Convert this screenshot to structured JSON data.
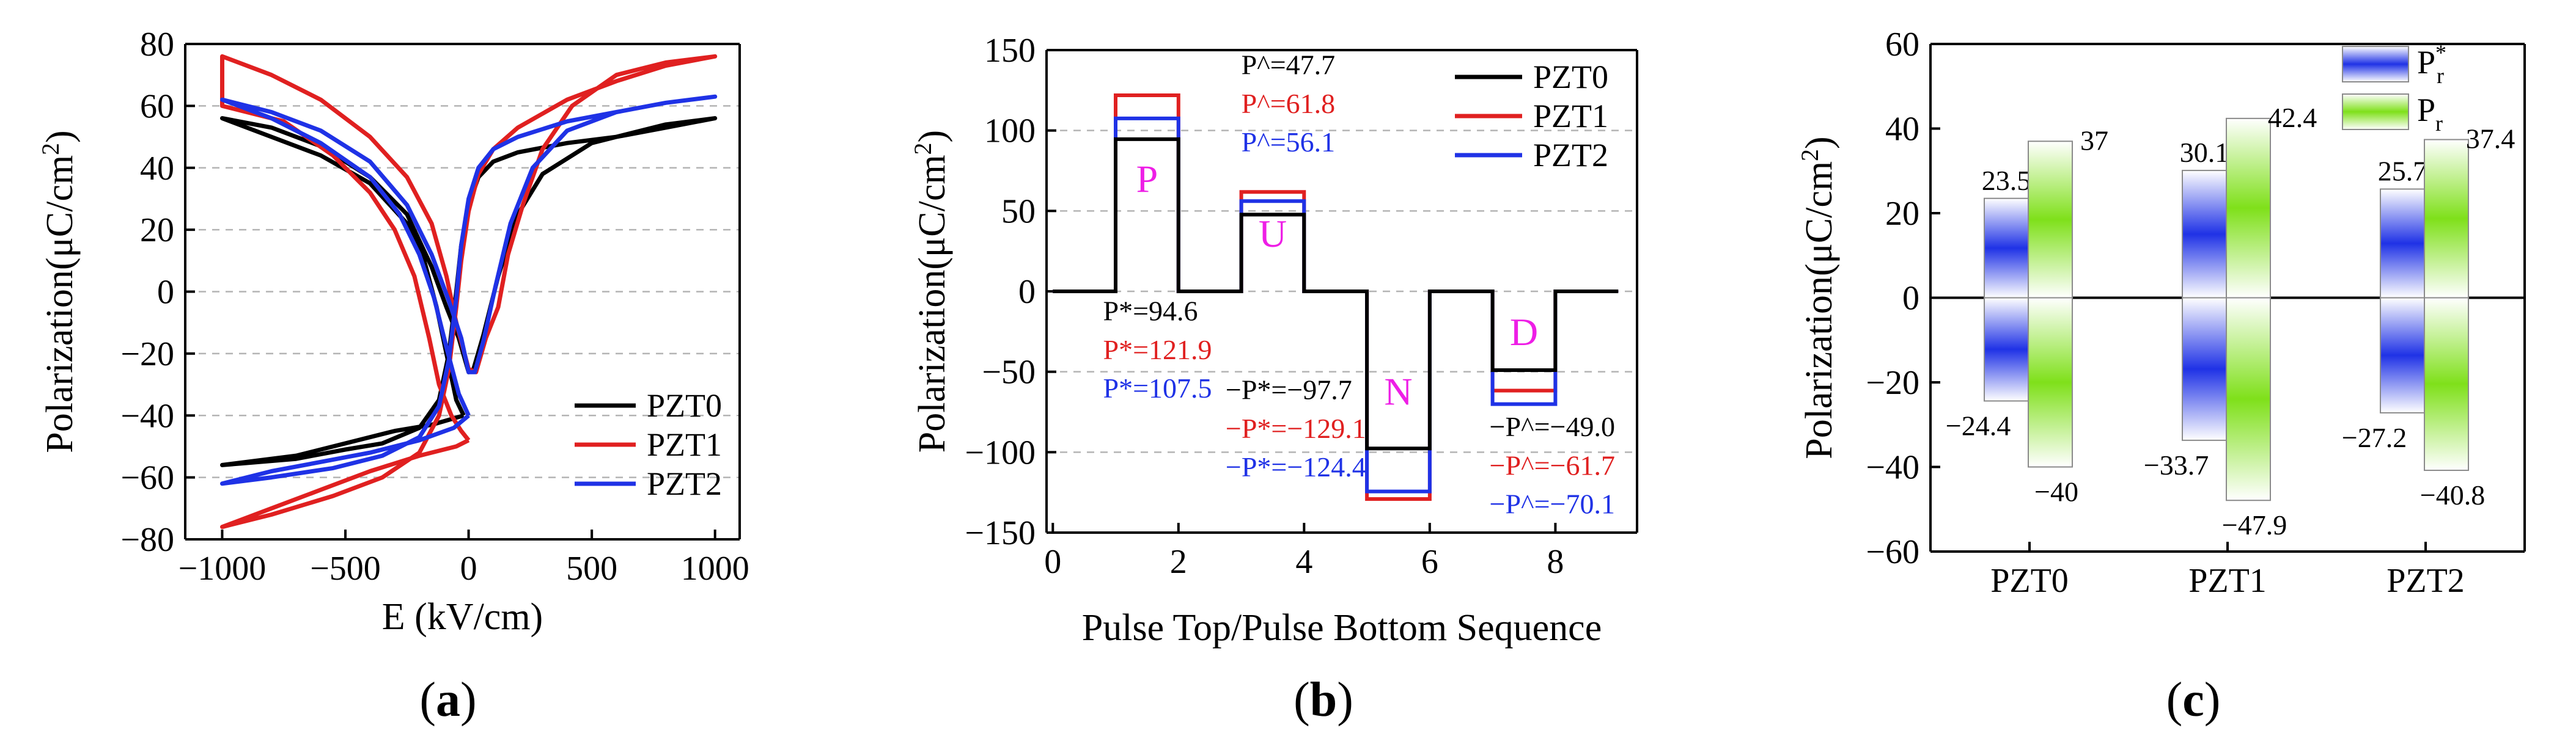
{
  "chart_data": [
    {
      "type": "line",
      "panel_label": "(a)",
      "panel_label_parts": [
        "(",
        "a",
        ")"
      ],
      "xlabel": "E (kV/cm)",
      "ylabel_parts": [
        "Polarization(μC/cm",
        "2",
        ")"
      ],
      "xlim": [
        -1150,
        1100
      ],
      "ylim": [
        -80,
        80
      ],
      "xticks": [
        -1000,
        -500,
        0,
        500,
        1000
      ],
      "yticks": [
        -80,
        -60,
        -40,
        -20,
        0,
        20,
        40,
        60,
        80
      ],
      "grid": true,
      "legend_position": "lower-right",
      "series": [
        {
          "name": "PZT0",
          "color": "#000000",
          "points": [
            [
              -20,
              -40
            ],
            [
              -50,
              -35
            ],
            [
              -90,
              -20
            ],
            [
              -130,
              -5
            ],
            [
              -180,
              10
            ],
            [
              -250,
              22
            ],
            [
              -400,
              35
            ],
            [
              -600,
              44
            ],
            [
              -800,
              50
            ],
            [
              -1000,
              56
            ],
            [
              -800,
              53
            ],
            [
              -600,
              47
            ],
            [
              -400,
              37
            ],
            [
              -250,
              25
            ],
            [
              -150,
              8
            ],
            [
              -90,
              -5
            ],
            [
              -40,
              -15
            ],
            [
              0,
              -26
            ],
            [
              20,
              -25
            ],
            [
              60,
              -14
            ],
            [
              120,
              5
            ],
            [
              200,
              25
            ],
            [
              300,
              38
            ],
            [
              500,
              48
            ],
            [
              800,
              54
            ],
            [
              1000,
              56
            ],
            [
              800,
              53
            ],
            [
              600,
              50
            ],
            [
              400,
              48
            ],
            [
              200,
              45
            ],
            [
              100,
              42
            ],
            [
              40,
              37
            ],
            [
              0,
              28
            ],
            [
              -30,
              15
            ],
            [
              -50,
              0
            ],
            [
              -80,
              -20
            ],
            [
              -120,
              -35
            ],
            [
              -200,
              -44
            ],
            [
              -350,
              -49
            ],
            [
              -500,
              -51
            ],
            [
              -700,
              -54
            ],
            [
              -1000,
              -56
            ],
            [
              -700,
              -53
            ],
            [
              -500,
              -49
            ],
            [
              -300,
              -45
            ],
            [
              -150,
              -43
            ],
            [
              -20,
              -40
            ]
          ]
        },
        {
          "name": "PZT1",
          "color": "#e02020",
          "points": [
            [
              0,
              -48
            ],
            [
              -30,
              -45
            ],
            [
              -70,
              -40
            ],
            [
              -120,
              -30
            ],
            [
              -160,
              -15
            ],
            [
              -220,
              5
            ],
            [
              -300,
              20
            ],
            [
              -400,
              32
            ],
            [
              -550,
              44
            ],
            [
              -750,
              55
            ],
            [
              -1000,
              60
            ],
            [
              -1000,
              65
            ],
            [
              -1000,
              76
            ],
            [
              -800,
              70
            ],
            [
              -600,
              62
            ],
            [
              -400,
              50
            ],
            [
              -250,
              37
            ],
            [
              -150,
              22
            ],
            [
              -90,
              5
            ],
            [
              -50,
              -10
            ],
            [
              0,
              -25
            ],
            [
              30,
              -26
            ],
            [
              70,
              -15
            ],
            [
              120,
              -5
            ],
            [
              160,
              12
            ],
            [
              220,
              28
            ],
            [
              300,
              46
            ],
            [
              420,
              60
            ],
            [
              600,
              70
            ],
            [
              800,
              74
            ],
            [
              1000,
              76
            ],
            [
              800,
              73
            ],
            [
              600,
              68
            ],
            [
              400,
              62
            ],
            [
              200,
              53
            ],
            [
              100,
              46
            ],
            [
              40,
              38
            ],
            [
              0,
              26
            ],
            [
              -30,
              10
            ],
            [
              -50,
              -5
            ],
            [
              -80,
              -25
            ],
            [
              -120,
              -40
            ],
            [
              -200,
              -52
            ],
            [
              -350,
              -60
            ],
            [
              -550,
              -66
            ],
            [
              -800,
              -72
            ],
            [
              -1000,
              -76
            ],
            [
              -800,
              -70
            ],
            [
              -600,
              -64
            ],
            [
              -400,
              -58
            ],
            [
              -200,
              -53
            ],
            [
              -50,
              -50
            ],
            [
              0,
              -48
            ]
          ]
        },
        {
          "name": "PZT2",
          "color": "#1f32e6",
          "points": [
            [
              0,
              -40
            ],
            [
              -40,
              -33
            ],
            [
              -90,
              -18
            ],
            [
              -140,
              -2
            ],
            [
              -200,
              12
            ],
            [
              -280,
              25
            ],
            [
              -400,
              37
            ],
            [
              -600,
              48
            ],
            [
              -800,
              56
            ],
            [
              -1000,
              62
            ],
            [
              -800,
              58
            ],
            [
              -600,
              52
            ],
            [
              -400,
              42
            ],
            [
              -250,
              28
            ],
            [
              -150,
              12
            ],
            [
              -80,
              -3
            ],
            [
              -30,
              -15
            ],
            [
              0,
              -26
            ],
            [
              25,
              -26
            ],
            [
              60,
              -16
            ],
            [
              110,
              2
            ],
            [
              170,
              22
            ],
            [
              260,
              40
            ],
            [
              400,
              52
            ],
            [
              600,
              58
            ],
            [
              800,
              61
            ],
            [
              1000,
              63
            ],
            [
              800,
              61
            ],
            [
              600,
              58
            ],
            [
              400,
              55
            ],
            [
              200,
              50
            ],
            [
              100,
              46
            ],
            [
              40,
              40
            ],
            [
              0,
              30
            ],
            [
              -30,
              15
            ],
            [
              -50,
              -2
            ],
            [
              -80,
              -22
            ],
            [
              -120,
              -37
            ],
            [
              -200,
              -47
            ],
            [
              -350,
              -53
            ],
            [
              -550,
              -57
            ],
            [
              -800,
              -60
            ],
            [
              -1000,
              -62
            ],
            [
              -800,
              -58
            ],
            [
              -600,
              -55
            ],
            [
              -400,
              -52
            ],
            [
              -200,
              -48
            ],
            [
              -60,
              -44
            ],
            [
              0,
              -40
            ]
          ]
        }
      ]
    },
    {
      "type": "line",
      "panel_label": "(b)",
      "panel_label_parts": [
        "(",
        "b",
        ")"
      ],
      "xlabel": "Pulse Top/Pulse Bottom Sequence",
      "ylabel_parts": [
        "Polarization(μC/cm",
        "2",
        ")"
      ],
      "xlim": [
        -0.1,
        9.3
      ],
      "ylim": [
        -150,
        150
      ],
      "xticks": [
        0,
        2,
        4,
        6,
        8
      ],
      "yticks": [
        -150,
        -100,
        -50,
        0,
        50,
        100,
        150
      ],
      "grid": true,
      "legend_position": "top-right",
      "pulse_labels": [
        {
          "text": "P",
          "x": 1.5,
          "y": 70
        },
        {
          "text": "U",
          "x": 3.5,
          "y": 36
        },
        {
          "text": "N",
          "x": 5.5,
          "y": -62
        },
        {
          "text": "D",
          "x": 7.5,
          "y": -25
        }
      ],
      "series": [
        {
          "name": "PZT0",
          "color": "#000000",
          "levels": {
            "P": 94.6,
            "U_top": 47.7,
            "N": -97.7,
            "D_top": -49.0
          }
        },
        {
          "name": "PZT1",
          "color": "#e02020",
          "levels": {
            "P": 121.9,
            "U_top": 61.8,
            "N": -129.1,
            "D_top": -61.7
          }
        },
        {
          "name": "PZT2",
          "color": "#1f32e6",
          "levels": {
            "P": 107.5,
            "U_top": 56.1,
            "N": -124.4,
            "D_top": -70.1
          }
        }
      ],
      "annotations": [
        {
          "text": "P^=47.7",
          "color": "#000000",
          "x": 3.0,
          "y": 141
        },
        {
          "text": "P^=61.8",
          "color": "#e02020",
          "x": 3.0,
          "y": 117
        },
        {
          "text": "P^=56.1",
          "color": "#1f32e6",
          "x": 3.0,
          "y": 93
        },
        {
          "text": "P*=94.6",
          "color": "#000000",
          "x": 0.8,
          "y": -12
        },
        {
          "text": "P*=121.9",
          "color": "#e02020",
          "x": 0.8,
          "y": -36
        },
        {
          "text": "P*=107.5",
          "color": "#1f32e6",
          "x": 0.8,
          "y": -60
        },
        {
          "text": "−P*=−97.7",
          "color": "#000000",
          "x": 2.75,
          "y": -61
        },
        {
          "text": "−P*=−129.1",
          "color": "#e02020",
          "x": 2.75,
          "y": -85
        },
        {
          "text": "−P*=−124.4",
          "color": "#1f32e6",
          "x": 2.75,
          "y": -109
        },
        {
          "text": "−P^=−49.0",
          "color": "#000000",
          "x": 6.95,
          "y": -84
        },
        {
          "text": "−P^=−61.7",
          "color": "#e02020",
          "x": 6.95,
          "y": -108
        },
        {
          "text": "−P^=−70.1",
          "color": "#1f32e6",
          "x": 6.95,
          "y": -132
        }
      ]
    },
    {
      "type": "bar",
      "panel_label": "(c)",
      "panel_label_parts": [
        "(",
        "c",
        ")"
      ],
      "categories": [
        "PZT0",
        "PZT1",
        "PZT2"
      ],
      "ylabel_parts": [
        "Polarization(μC/cm",
        "2",
        ")"
      ],
      "ylim": [
        -60,
        60
      ],
      "yticks": [
        -60,
        -40,
        -20,
        0,
        20,
        40,
        60
      ],
      "legend_position": "top-right",
      "legend": [
        {
          "base": "P",
          "sub": "r",
          "sup": "*",
          "color": "#1f32e6"
        },
        {
          "base": "P",
          "sub": "r",
          "sup": "",
          "color": "#7fe01a"
        }
      ],
      "series": [
        {
          "name": "Pr*",
          "color": "#1f32e6",
          "positive": [
            23.5,
            30.1,
            25.7
          ],
          "negative": [
            -24.4,
            -33.7,
            -27.2
          ]
        },
        {
          "name": "Pr",
          "color": "#7fe01a",
          "positive": [
            37,
            42.4,
            37.4
          ],
          "negative": [
            -40,
            -47.9,
            -40.8
          ]
        }
      ],
      "value_labels": {
        "positive": [
          [
            "23.5",
            "37"
          ],
          [
            "30.1",
            "42.4"
          ],
          [
            "25.7",
            "37.4"
          ]
        ],
        "negative": [
          [
            "−24.4",
            "−40"
          ],
          [
            "−33.7",
            "−47.9"
          ],
          [
            "−27.2",
            "−40.8"
          ]
        ]
      }
    }
  ]
}
